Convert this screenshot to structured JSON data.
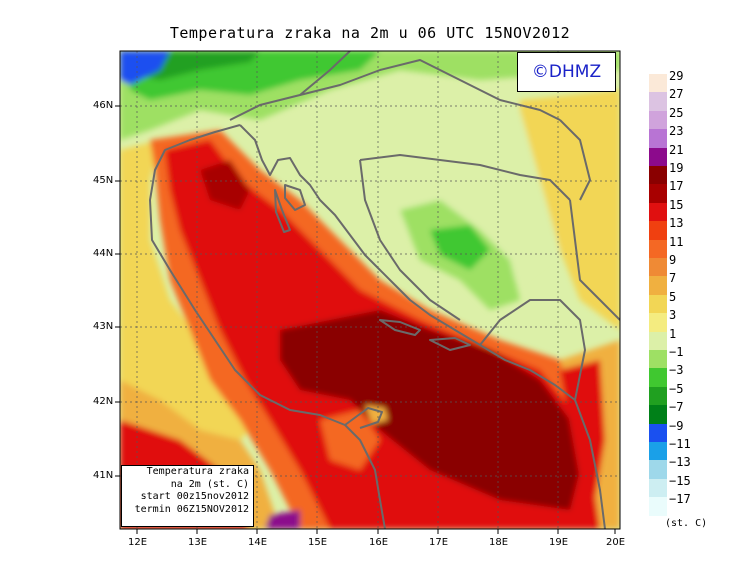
{
  "title": "Temperatura zraka na 2m u 06 UTC 15NOV2012",
  "logo": "©DHMZ",
  "info": {
    "line1": "Temperatura zraka",
    "line2": "na 2m (st. C)",
    "line3": "start 00z15nov2012",
    "line4": "termin 06Z15NOV2012"
  },
  "lat_labels": [
    "46N",
    "45N",
    "44N",
    "43N",
    "42N",
    "41N"
  ],
  "lon_labels": [
    "12E",
    "13E",
    "14E",
    "15E",
    "16E",
    "17E",
    "18E",
    "19E",
    "20E"
  ],
  "legend": {
    "labels": [
      "29",
      "27",
      "25",
      "23",
      "21",
      "19",
      "17",
      "15",
      "13",
      "11",
      "9",
      "7",
      "5",
      "3",
      "1",
      "−1",
      "−3",
      "−5",
      "−7",
      "−9",
      "−11",
      "−13",
      "−15",
      "−17"
    ],
    "unit": "(st. C)",
    "colors": [
      "#fbe9d8",
      "#dcc3e2",
      "#d0a3dc",
      "#b874d4",
      "#8c0a8c",
      "#8a0000",
      "#a80000",
      "#e01010",
      "#f04010",
      "#f46824",
      "#ef8a35",
      "#f0b040",
      "#f2d655",
      "#f4ec80",
      "#dcf0a8",
      "#9ee064",
      "#40c830",
      "#20a020",
      "#008018",
      "#1a50f0",
      "#1aa0e8",
      "#9ed8ea",
      "#cdeef2",
      "#eafcfc"
    ]
  },
  "colors": {
    "frame": "#000000",
    "coast": "#6a6a6a"
  }
}
